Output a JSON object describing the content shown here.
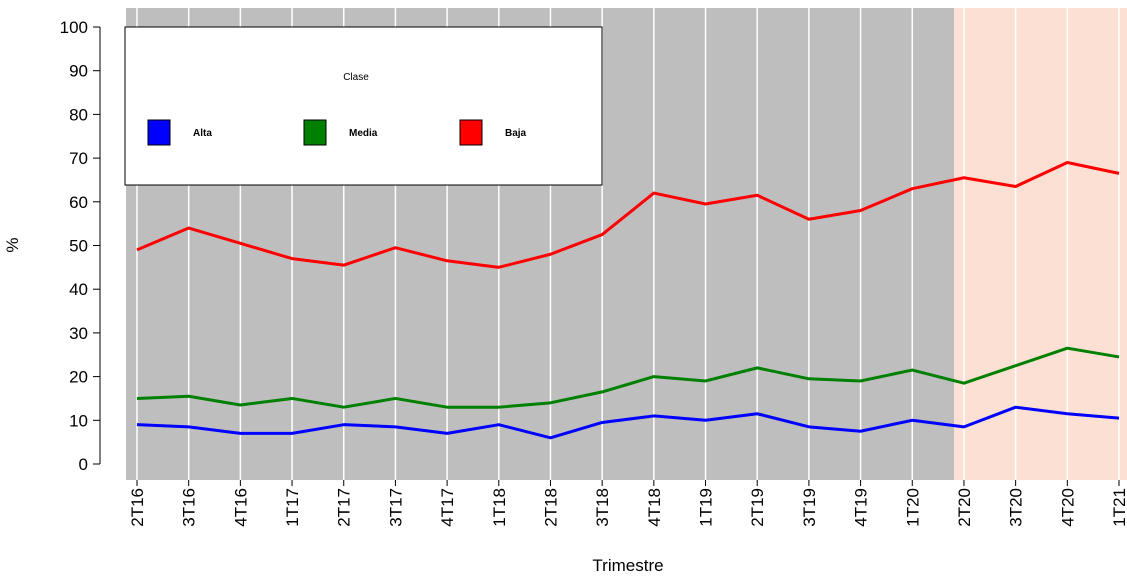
{
  "chart_data": {
    "type": "line",
    "x_label": "Trimestre",
    "y_label": "%",
    "categories": [
      "2T16",
      "3T16",
      "4T16",
      "1T17",
      "2T17",
      "3T17",
      "4T17",
      "1T18",
      "2T18",
      "3T18",
      "4T18",
      "1T19",
      "2T19",
      "3T19",
      "4T19",
      "1T20",
      "2T20",
      "3T20",
      "4T20",
      "1T21"
    ],
    "legend_title": "Clase",
    "series": [
      {
        "name": "Alta",
        "color": "#0000ff",
        "values": [
          9,
          8.5,
          7,
          7,
          9,
          8.5,
          7,
          9,
          6,
          9.5,
          11,
          10,
          11.5,
          8.5,
          7.5,
          10,
          8.5,
          13,
          11.5,
          10.5
        ]
      },
      {
        "name": "Media",
        "color": "#008000",
        "values": [
          15,
          15.5,
          13.5,
          15,
          13,
          15,
          13,
          13,
          14,
          16.5,
          20,
          19,
          22,
          19.5,
          19,
          21.5,
          18.5,
          22.5,
          26.5,
          24.5
        ]
      },
      {
        "name": "Baja",
        "color": "#ff0000",
        "values": [
          49,
          54,
          50.5,
          47,
          45.5,
          49.5,
          46.5,
          45,
          48,
          52.5,
          62,
          59.5,
          61.5,
          56,
          58,
          63,
          65.5,
          63.5,
          69,
          66.5
        ]
      }
    ],
    "ylim": [
      0,
      100
    ],
    "yticks": [
      0,
      10,
      20,
      30,
      40,
      50,
      60,
      70,
      80,
      90,
      100
    ]
  }
}
